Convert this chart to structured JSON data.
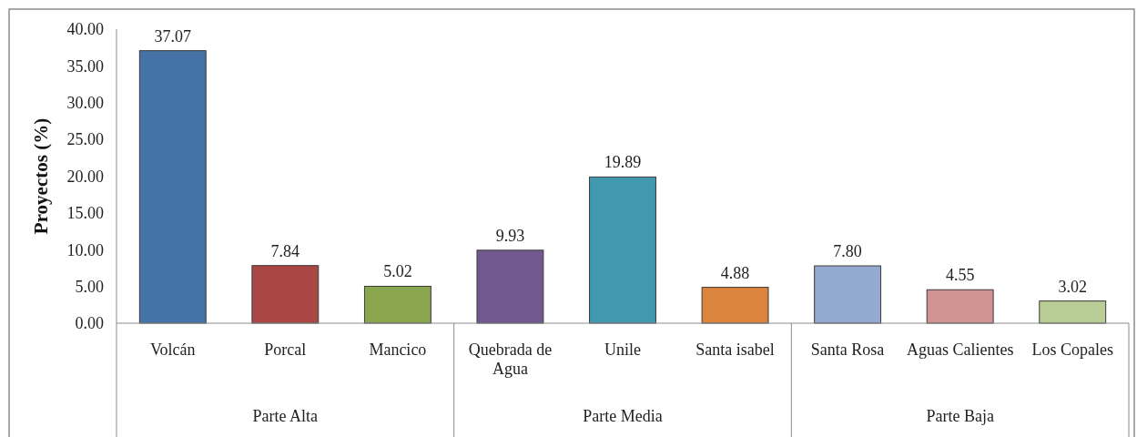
{
  "chart_data": {
    "type": "bar",
    "ylabel": "Proyectos (%)",
    "categories": [
      "Volcán",
      "Porcal",
      "Mancico",
      "Quebrada de Agua",
      "Unile",
      "Santa isabel",
      "Santa Rosa",
      "Aguas Calientes",
      "Los Copales"
    ],
    "values": [
      37.07,
      7.84,
      5.02,
      9.93,
      19.89,
      4.88,
      7.8,
      4.55,
      3.02
    ],
    "colors": [
      "#4572a7",
      "#aa4643",
      "#89a54e",
      "#71588f",
      "#4198af",
      "#db843d",
      "#93a9cf",
      "#d19392",
      "#b9cd96"
    ],
    "value_labels": [
      "37.07",
      "7.84",
      "5.02",
      "9.93",
      "19.89",
      "4.88",
      "7.80",
      "4.55",
      "3.02"
    ],
    "ylim": [
      0,
      40
    ],
    "yticks": [
      {
        "value": 0,
        "label": "0.00"
      },
      {
        "value": 5,
        "label": "5.00"
      },
      {
        "value": 10,
        "label": "10.00"
      },
      {
        "value": 15,
        "label": "15.00"
      },
      {
        "value": 20,
        "label": "20.00"
      },
      {
        "value": 25,
        "label": "25.00"
      },
      {
        "value": 30,
        "label": "30.00"
      },
      {
        "value": 35,
        "label": "35.00"
      },
      {
        "value": 40,
        "label": "40.00"
      }
    ],
    "annotations": [
      "Parte Alta",
      "Parte Media",
      "Parte Baja"
    ]
  }
}
